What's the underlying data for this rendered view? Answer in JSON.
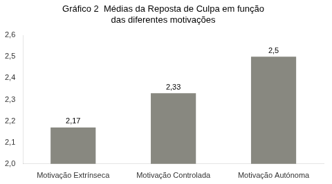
{
  "chart_data": {
    "type": "bar",
    "title": [
      "Gráfico 2  Médias da Reposta de Culpa em função",
      "das diferentes motivações"
    ],
    "categories": [
      "Motivação Extrínseca",
      "Motivação Controlada",
      "Motivação Autónoma"
    ],
    "values": [
      2.17,
      2.33,
      2.5
    ],
    "value_labels": [
      "2,17",
      "2,33",
      "2,5"
    ],
    "data_labels": true,
    "color": "#888880",
    "ylim": [
      2.0,
      2.6
    ],
    "yticks": [
      {
        "value": 2.0,
        "label": "2,0"
      },
      {
        "value": 2.1,
        "label": "2,1"
      },
      {
        "value": 2.2,
        "label": "2,2"
      },
      {
        "value": 2.3,
        "label": "2,3"
      },
      {
        "value": 2.4,
        "label": "2,4"
      },
      {
        "value": 2.5,
        "label": "2,5"
      },
      {
        "value": 2.6,
        "label": "2,6"
      }
    ],
    "grid": false
  }
}
